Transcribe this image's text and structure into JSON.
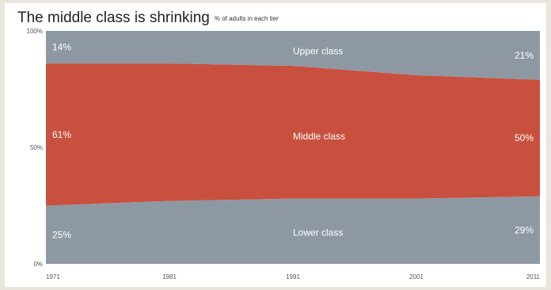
{
  "title": "The middle class is shrinking",
  "subtitle": "% of adults in each tier",
  "colors": {
    "upper": "#8e98a3",
    "middle": "#c9503f",
    "lower": "#8e98a3"
  },
  "chart_data": {
    "type": "area",
    "stacked": true,
    "x": [
      1971,
      1981,
      1991,
      2001,
      2011
    ],
    "x_ticks": [
      "1971",
      "1981",
      "1991",
      "2001",
      "2011"
    ],
    "y_ticks": [
      "0%",
      "50%",
      "100%"
    ],
    "ylim": [
      0,
      100
    ],
    "series": [
      {
        "name": "Lower class",
        "values": [
          25,
          27,
          28,
          28,
          29
        ],
        "start_label": "25%",
        "end_label": "29%"
      },
      {
        "name": "Middle class",
        "values": [
          61,
          59,
          57,
          53,
          50
        ],
        "start_label": "61%",
        "end_label": "50%"
      },
      {
        "name": "Upper class",
        "values": [
          14,
          14,
          15,
          19,
          21
        ],
        "start_label": "14%",
        "end_label": "21%"
      }
    ]
  }
}
